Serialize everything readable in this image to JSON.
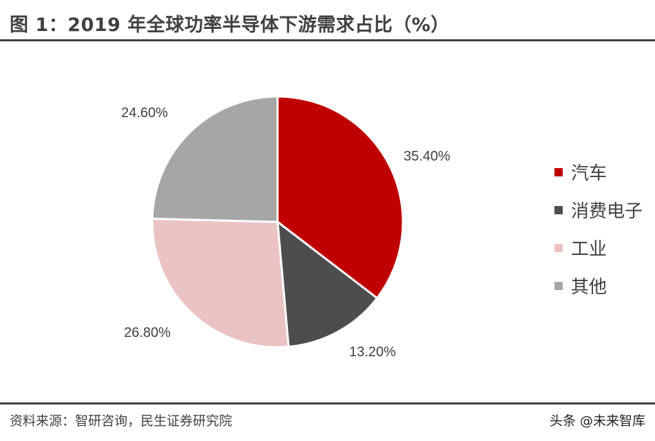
{
  "header": {
    "title": "图 1：2019 年全球功率半导体下游需求占比（%）"
  },
  "footer": {
    "source": "资料来源：智研咨询，民生证券研究院",
    "watermark": "头条 @未来智库"
  },
  "labels": {
    "auto": "35.40%",
    "consumer": "13.20%",
    "industry": "26.80%",
    "other": "24.60%"
  },
  "legend": [
    {
      "label": "汽车",
      "color": "#C00000"
    },
    {
      "label": "消费电子",
      "color": "#4D4D4F"
    },
    {
      "label": "工业",
      "color": "#EBC3C3"
    },
    {
      "label": "其他",
      "color": "#A6A6A6"
    }
  ],
  "chart_data": {
    "type": "pie",
    "title": "图 1：2019 年全球功率半导体下游需求占比（%）",
    "categories": [
      "汽车",
      "消费电子",
      "工业",
      "其他"
    ],
    "values": [
      35.4,
      13.2,
      26.8,
      24.6
    ],
    "value_labels": [
      "35.40%",
      "13.20%",
      "26.80%",
      "24.60%"
    ],
    "colors": [
      "#C00000",
      "#4D4D4F",
      "#EBC3C3",
      "#A6A6A6"
    ],
    "start_angle": "12 o'clock, clockwise",
    "legend_position": "right"
  }
}
